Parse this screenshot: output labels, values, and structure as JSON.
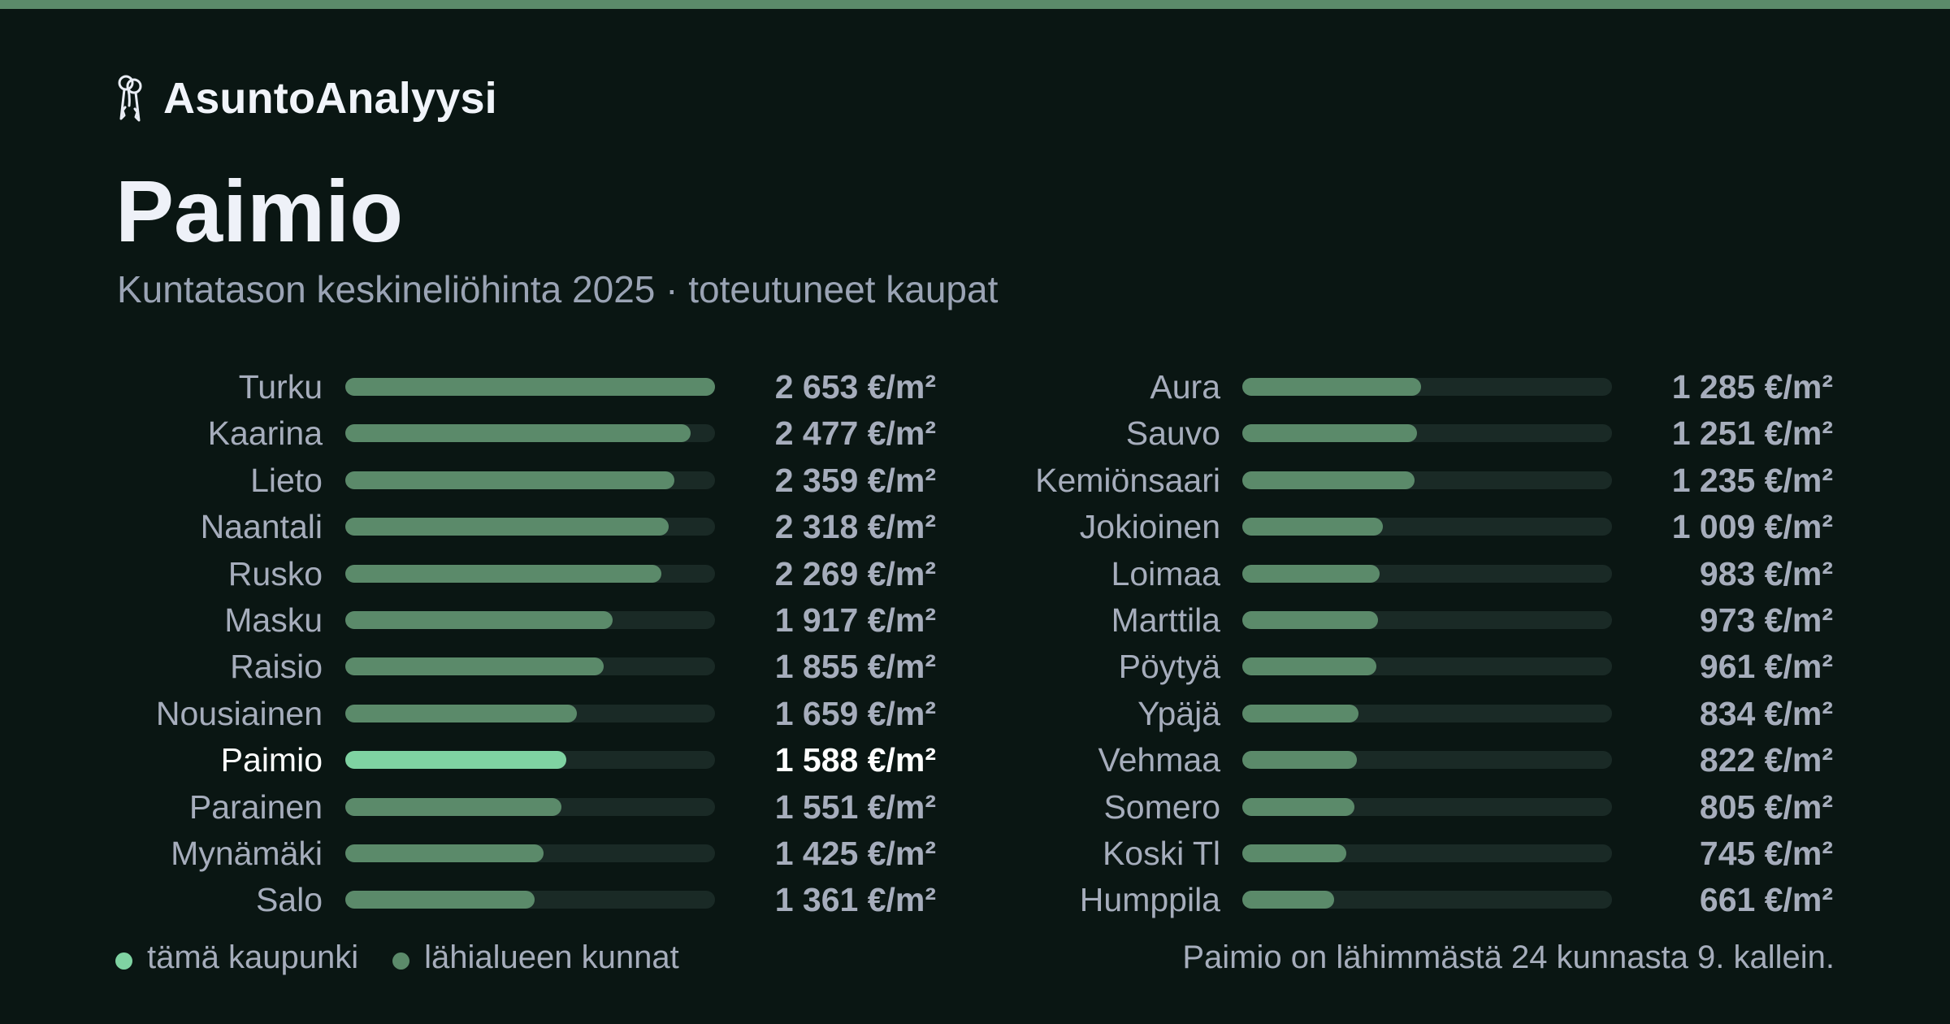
{
  "brand": {
    "name": "AsuntoAnalyysi",
    "icon": "keys-icon"
  },
  "title": "Paimio",
  "subtitle": "Kuntatason keskineliöhinta 2025 · toteutuneet kaupat",
  "colors": {
    "background": "#0a1613",
    "top_stripe": "#5b8a6a",
    "bar_neighbor": "#5b8a6a",
    "bar_highlight": "#7fd3a2",
    "bar_track": "#1a2a26",
    "text_muted": "#a6adbc",
    "text_highlight": "#ffffff"
  },
  "chart_data": {
    "type": "bar",
    "orientation": "horizontal",
    "unit": "€/m²",
    "xlim": [
      0,
      2653
    ],
    "highlight": "Paimio",
    "categories": [
      "Turku",
      "Kaarina",
      "Lieto",
      "Naantali",
      "Rusko",
      "Masku",
      "Raisio",
      "Nousiainen",
      "Paimio",
      "Parainen",
      "Mynämäki",
      "Salo",
      "Aura",
      "Sauvo",
      "Kemiönsaari",
      "Jokioinen",
      "Loimaa",
      "Marttila",
      "Pöytyä",
      "Ypäjä",
      "Vehmaa",
      "Somero",
      "Koski Tl",
      "Humppila"
    ],
    "values": [
      2653,
      2477,
      2359,
      2318,
      2269,
      1917,
      1855,
      1659,
      1588,
      1551,
      1425,
      1361,
      1285,
      1251,
      1235,
      1009,
      983,
      973,
      961,
      834,
      822,
      805,
      745,
      661
    ],
    "value_labels": [
      "2 653 €/m²",
      "2 477 €/m²",
      "2 359 €/m²",
      "2 318 €/m²",
      "2 269 €/m²",
      "1 917 €/m²",
      "1 855 €/m²",
      "1 659 €/m²",
      "1 588 €/m²",
      "1 551 €/m²",
      "1 425 €/m²",
      "1 361 €/m²",
      "1 285 €/m²",
      "1 251 €/m²",
      "1 235 €/m²",
      "1 009 €/m²",
      "983 €/m²",
      "973 €/m²",
      "961 €/m²",
      "834 €/m²",
      "822 €/m²",
      "805 €/m²",
      "745 €/m²",
      "661 €/m²"
    ],
    "legend": [
      {
        "label": "tämä kaupunki",
        "color": "#7fd3a2"
      },
      {
        "label": "lähialueen kunnat",
        "color": "#5b8a6a"
      }
    ],
    "legend_position": "bottom-left"
  },
  "footnote": "Paimio on lähimmästä 24 kunnasta 9. kallein."
}
